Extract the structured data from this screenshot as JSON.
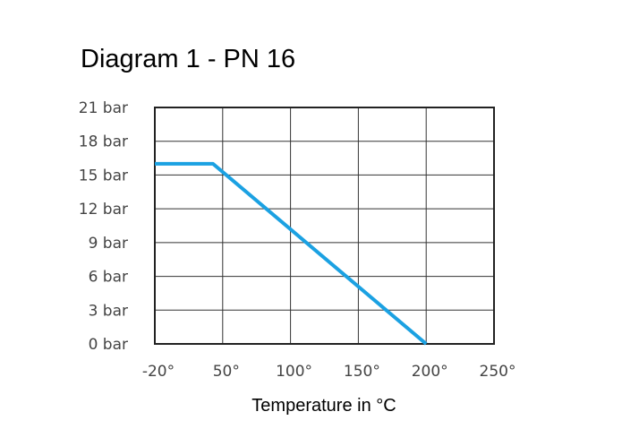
{
  "chart_data": {
    "type": "line",
    "title": "Diagram 1 - PN 16",
    "xlabel": "Temperature in °C",
    "ylabel": "",
    "x_ticks": [
      "-20°",
      "50°",
      "100°",
      "150°",
      "200°",
      "250°"
    ],
    "x_tick_values": [
      -20,
      50,
      100,
      150,
      200,
      250
    ],
    "y_ticks": [
      "0 bar",
      "3 bar",
      "6 bar",
      "9 bar",
      "12 bar",
      "15 bar",
      "18 bar",
      "21 bar"
    ],
    "y_tick_values": [
      0,
      3,
      6,
      9,
      12,
      15,
      18,
      21
    ],
    "ylim": [
      0,
      21
    ],
    "xlim": [
      -20,
      250
    ],
    "grid": true,
    "series": [
      {
        "x": [
          -20,
          40,
          200
        ],
        "y": [
          16,
          16,
          0
        ],
        "color": "#1ba1e2"
      }
    ]
  }
}
